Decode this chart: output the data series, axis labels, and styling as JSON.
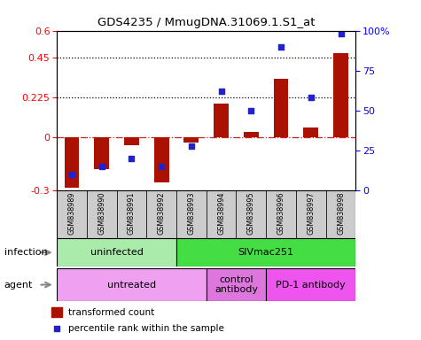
{
  "title": "GDS4235 / MmugDNA.31069.1.S1_at",
  "samples": [
    "GSM838989",
    "GSM838990",
    "GSM838991",
    "GSM838992",
    "GSM838993",
    "GSM838994",
    "GSM838995",
    "GSM838996",
    "GSM838997",
    "GSM838998"
  ],
  "transformed_count": [
    -0.285,
    -0.18,
    -0.045,
    -0.255,
    -0.03,
    0.19,
    0.03,
    0.33,
    0.055,
    0.475
  ],
  "percentile_rank": [
    10,
    15,
    20,
    15,
    28,
    62,
    50,
    90,
    58,
    98
  ],
  "ylim_left": [
    -0.3,
    0.6
  ],
  "ylim_right": [
    0,
    100
  ],
  "yticks_left": [
    -0.3,
    0,
    0.225,
    0.45,
    0.6
  ],
  "yticks_right": [
    0,
    25,
    50,
    75,
    100
  ],
  "hlines": [
    0.225,
    0.45
  ],
  "bar_color": "#aa1100",
  "dot_color": "#2222cc",
  "zero_line_color": "#cc2222",
  "infection_groups": [
    {
      "label": "uninfected",
      "start": 0,
      "end": 4,
      "color": "#aaeaaa"
    },
    {
      "label": "SIVmac251",
      "start": 4,
      "end": 10,
      "color": "#44dd44"
    }
  ],
  "agent_groups": [
    {
      "label": "untreated",
      "start": 0,
      "end": 5,
      "color": "#f0a0f0"
    },
    {
      "label": "control\nantibody",
      "start": 5,
      "end": 7,
      "color": "#dd77dd"
    },
    {
      "label": "PD-1 antibody",
      "start": 7,
      "end": 10,
      "color": "#ee55ee"
    }
  ],
  "legend_labels": [
    "transformed count",
    "percentile rank within the sample"
  ],
  "bar_width": 0.5,
  "sample_box_color": "#cccccc"
}
